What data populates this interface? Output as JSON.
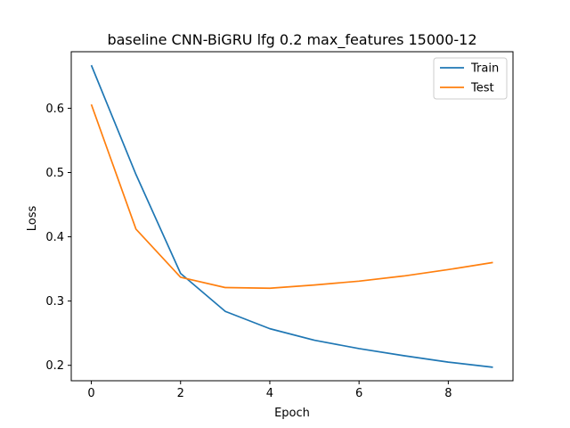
{
  "chart_data": {
    "type": "line",
    "title": "baseline CNN-BiGRU lfg 0.2 max_features 15000-12",
    "xlabel": "Epoch",
    "ylabel": "Loss",
    "x": [
      0,
      1,
      2,
      3,
      4,
      5,
      6,
      7,
      8,
      9
    ],
    "xlim": [
      -0.45,
      9.45
    ],
    "ylim": [
      0.176,
      0.688
    ],
    "xticks": [
      0,
      2,
      4,
      6,
      8
    ],
    "yticks": [
      0.2,
      0.3,
      0.4,
      0.5,
      0.6
    ],
    "xtick_labels": [
      "0",
      "2",
      "4",
      "6",
      "8"
    ],
    "ytick_labels": [
      "0.2",
      "0.3",
      "0.4",
      "0.5",
      "0.6"
    ],
    "grid": false,
    "legend_position": "upper right",
    "series": [
      {
        "name": "Train",
        "color": "#1f77b4",
        "values": [
          0.667,
          0.497,
          0.343,
          0.284,
          0.257,
          0.239,
          0.226,
          0.215,
          0.205,
          0.197
        ]
      },
      {
        "name": "Test",
        "color": "#ff7f0e",
        "values": [
          0.606,
          0.412,
          0.337,
          0.321,
          0.32,
          0.325,
          0.331,
          0.339,
          0.349,
          0.36
        ]
      }
    ]
  }
}
